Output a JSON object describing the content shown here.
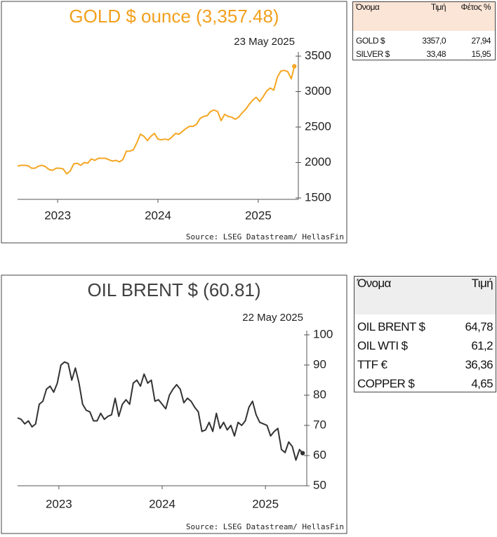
{
  "chart_data": [
    {
      "type": "line",
      "title": "GOLD $ ounce (3,357.48)",
      "title_color": "#f2a01e",
      "subtitle": "23 May 2025",
      "source": "Source: LSEG Datastream/ HellasFin",
      "x": [
        2022.6,
        2022.635,
        2022.67,
        2022.705,
        2022.74,
        2022.775,
        2022.81,
        2022.845,
        2022.88,
        2022.915,
        2022.95,
        2022.985,
        2023.02,
        2023.055,
        2023.09,
        2023.125,
        2023.16,
        2023.195,
        2023.23,
        2023.265,
        2023.3,
        2023.335,
        2023.37,
        2023.405,
        2023.44,
        2023.475,
        2023.51,
        2023.545,
        2023.58,
        2023.615,
        2023.65,
        2023.685,
        2023.72,
        2023.755,
        2023.79,
        2023.825,
        2023.86,
        2023.895,
        2023.93,
        2023.965,
        2024.0,
        2024.035,
        2024.07,
        2024.105,
        2024.14,
        2024.175,
        2024.21,
        2024.245,
        2024.28,
        2024.315,
        2024.35,
        2024.385,
        2024.42,
        2024.455,
        2024.49,
        2024.525,
        2024.56,
        2024.595,
        2024.63,
        2024.665,
        2024.7,
        2024.735,
        2024.77,
        2024.805,
        2024.84,
        2024.875,
        2024.91,
        2024.945,
        2024.98,
        2025.015,
        2025.05,
        2025.085,
        2025.12,
        2025.155,
        2025.19,
        2025.225,
        2025.26,
        2025.295,
        2025.33,
        2025.36
      ],
      "series": [
        {
          "color": "#f5a623",
          "values": [
            1950,
            1960,
            1960,
            1955,
            1920,
            1920,
            1950,
            1960,
            1940,
            1900,
            1890,
            1920,
            1920,
            1910,
            1840,
            1880,
            1980,
            1990,
            1960,
            2000,
            1990,
            2050,
            2030,
            2060,
            2060,
            2060,
            2040,
            2020,
            2030,
            2010,
            2040,
            2160,
            2160,
            2180,
            2280,
            2400,
            2370,
            2310,
            2370,
            2410,
            2330,
            2320,
            2330,
            2320,
            2360,
            2410,
            2400,
            2440,
            2480,
            2510,
            2510,
            2540,
            2620,
            2650,
            2660,
            2720,
            2740,
            2720,
            2590,
            2680,
            2650,
            2640,
            2610,
            2640,
            2700,
            2750,
            2820,
            2880,
            2920,
            2860,
            2930,
            3010,
            3050,
            3020,
            3200,
            3290,
            3300,
            3280,
            3180,
            3357.48
          ]
        }
      ],
      "end_marker": true,
      "xlim": [
        2022.6,
        2025.4
      ],
      "xticks": [
        2023,
        2024,
        2025
      ],
      "ylim": [
        1500,
        3500
      ],
      "yticks": [
        1500,
        2000,
        2500,
        3000,
        3500
      ]
    },
    {
      "type": "line",
      "title": "OIL BRENT $ (60.81)",
      "title_color": "#404040",
      "subtitle": "22 May 2025",
      "source": "Source: LSEG Datastream/ HellasFin",
      "x": [
        2022.6,
        2022.635,
        2022.67,
        2022.705,
        2022.74,
        2022.775,
        2022.81,
        2022.845,
        2022.88,
        2022.915,
        2022.95,
        2022.985,
        2023.02,
        2023.055,
        2023.09,
        2023.125,
        2023.16,
        2023.195,
        2023.23,
        2023.265,
        2023.3,
        2023.335,
        2023.37,
        2023.405,
        2023.44,
        2023.475,
        2023.51,
        2023.545,
        2023.58,
        2023.615,
        2023.65,
        2023.685,
        2023.72,
        2023.755,
        2023.79,
        2023.825,
        2023.86,
        2023.895,
        2023.93,
        2023.965,
        2024.0,
        2024.035,
        2024.07,
        2024.105,
        2024.14,
        2024.175,
        2024.21,
        2024.245,
        2024.28,
        2024.315,
        2024.35,
        2024.385,
        2024.42,
        2024.455,
        2024.49,
        2024.525,
        2024.56,
        2024.595,
        2024.63,
        2024.665,
        2024.7,
        2024.735,
        2024.77,
        2024.805,
        2024.84,
        2024.875,
        2024.91,
        2024.945,
        2024.98,
        2025.015,
        2025.05,
        2025.085,
        2025.12,
        2025.155,
        2025.19,
        2025.225,
        2025.26,
        2025.295,
        2025.33,
        2025.36
      ],
      "series": [
        {
          "color": "#333333",
          "values": [
            72.5,
            72,
            70.5,
            71.5,
            69.5,
            70.5,
            77,
            78,
            82,
            83,
            81,
            84,
            90,
            91,
            90.5,
            85,
            89,
            84,
            77,
            75,
            74.5,
            71.5,
            71.5,
            74,
            72,
            73,
            73.5,
            79,
            73,
            77,
            78.5,
            77,
            84,
            85,
            83,
            87,
            84,
            85,
            78,
            78.5,
            77,
            75.5,
            80,
            82,
            83.5,
            82,
            77.5,
            79,
            78,
            76,
            74.5,
            68,
            68.5,
            71,
            68,
            74,
            69,
            71,
            68.5,
            70,
            66.5,
            71,
            70,
            71.5,
            76,
            78,
            73.5,
            71,
            70.5,
            70,
            66.5,
            68,
            69,
            62,
            61,
            64.5,
            63,
            58.5,
            62,
            60.81
          ]
        }
      ],
      "end_marker": true,
      "xlim": [
        2022.6,
        2025.4
      ],
      "xticks": [
        2023,
        2024,
        2025
      ],
      "ylim": [
        50,
        100
      ],
      "yticks": [
        50,
        60,
        70,
        80,
        90,
        100
      ]
    }
  ],
  "tables": [
    {
      "columns": [
        "Όνομα",
        "Τιμή",
        "Φέτος %"
      ],
      "rows": [
        [
          "GOLD $",
          "3357,0",
          "27,94"
        ],
        [
          "SILVER $",
          "33,48",
          "15,95"
        ]
      ]
    },
    {
      "columns": [
        "Όνομα",
        "Τιμή"
      ],
      "rows": [
        [
          "OIL BRENT $",
          "64,78"
        ],
        [
          "OIL WTI $",
          "61,2"
        ],
        [
          "TTF €",
          "36,36"
        ],
        [
          "COPPER $",
          "4,65"
        ]
      ]
    }
  ]
}
